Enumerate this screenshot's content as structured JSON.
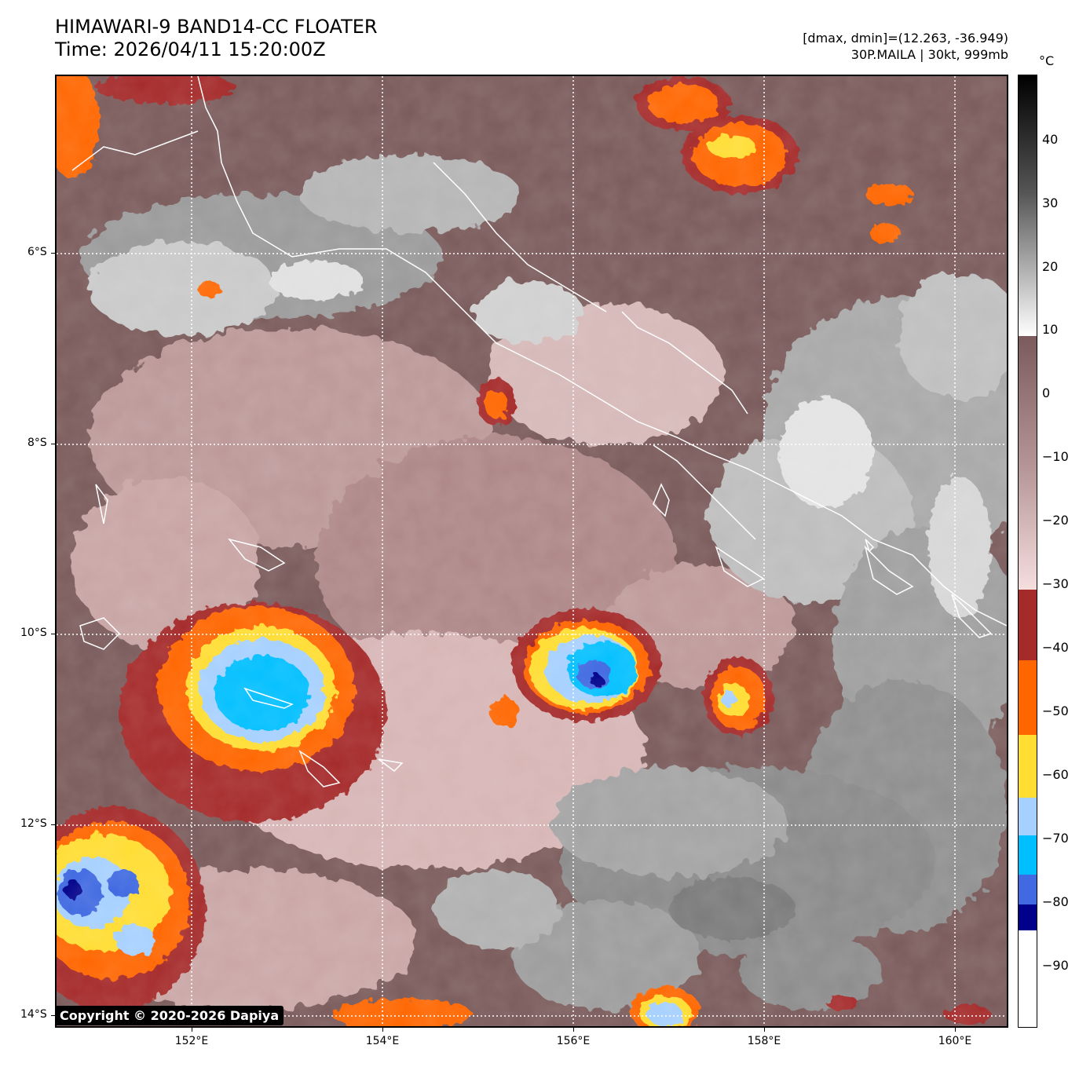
{
  "header": {
    "title_line1": "HIMAWARI-9 BAND14-CC FLOATER",
    "title_line2": "Time: 2026/04/11 15:20:00Z",
    "info_line1": "[dmax, dmin]=(12.263, -36.949)",
    "info_line2": "30P.MAILA | 30kt, 999mb"
  },
  "map": {
    "lat_labels": [
      "6°S",
      "8°S",
      "10°S",
      "12°S",
      "14°S"
    ],
    "lon_labels": [
      "152°E",
      "154°E",
      "156°E",
      "158°E",
      "160°E"
    ],
    "lat_values": [
      -6,
      -8,
      -10,
      -12,
      -14
    ],
    "lon_values": [
      152,
      154,
      156,
      158,
      160
    ],
    "copyright": "Copyright © 2020-2026 Dapiya"
  },
  "colorbar": {
    "unit": "°C",
    "tick_labels": [
      "40",
      "30",
      "20",
      "10",
      "0",
      "−10",
      "−20",
      "−30",
      "−40",
      "−50",
      "−60",
      "−70",
      "−80",
      "−90"
    ],
    "tick_values": [
      40,
      30,
      20,
      10,
      0,
      -10,
      -20,
      -30,
      -40,
      -50,
      -60,
      -70,
      -80,
      -90
    ],
    "range": [
      -100,
      50
    ],
    "colors": {
      "warm_top": "#000000",
      "warm_grey": "#7f7f7f",
      "white_10": "#ffffff",
      "brown_0": "#7a5a5a",
      "pink_minus30": "#f2d7d7",
      "red_minus30_minus40": "#a52a2a",
      "orange_minus40_minus52": "#ff6600",
      "yellow_minus52_minus62": "#ffdd33",
      "lightblue_minus62_minus68": "#a6d0ff",
      "cyan_minus68_minus80": "#00bfff",
      "blue_minus78_minus84": "#4169e1",
      "darkblue_minus84_minus88": "#00008b",
      "white_below_minus88": "#ffffff"
    }
  }
}
